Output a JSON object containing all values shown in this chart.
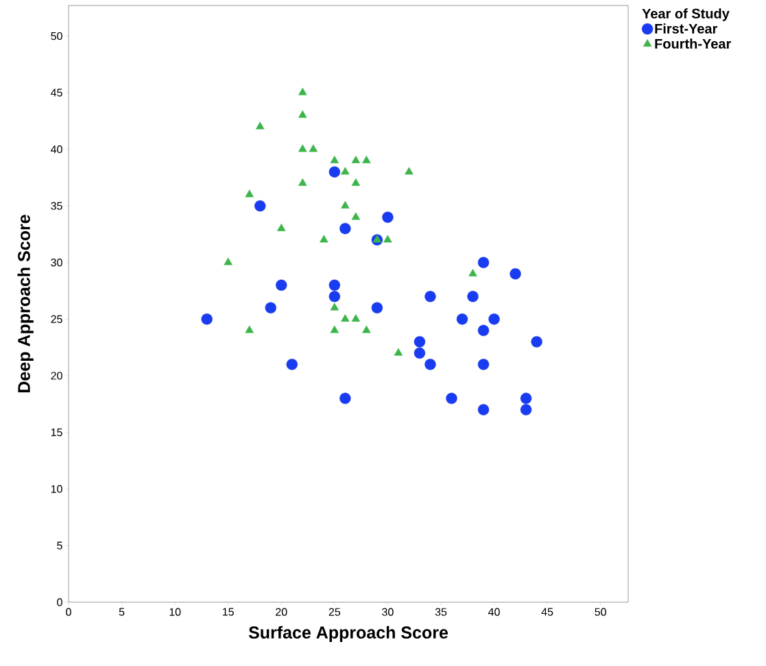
{
  "chart_data": {
    "type": "scatter",
    "xlabel": "Surface Approach Score",
    "ylabel": "Deep Approach Score",
    "legend_title": "Year of Study",
    "legend": "top right",
    "xlim": [
      0,
      52.6
    ],
    "ylim": [
      0,
      52.7
    ],
    "xticks": [
      0,
      5,
      10,
      15,
      20,
      25,
      30,
      35,
      40,
      45,
      50
    ],
    "yticks": [
      0,
      5,
      10,
      15,
      20,
      25,
      30,
      35,
      40,
      45,
      50
    ],
    "series": [
      {
        "name": "First-Year",
        "color": "#1a3cf0",
        "marker": "circle",
        "x": [
          13,
          18,
          19,
          20,
          21,
          25,
          25,
          25,
          26,
          26,
          29,
          29,
          30,
          33,
          33,
          34,
          34,
          36,
          37,
          38,
          39,
          39,
          39,
          39,
          40,
          42,
          43,
          43,
          44
        ],
        "values": [
          25,
          35,
          26,
          28,
          21,
          38,
          28,
          27,
          33,
          18,
          32,
          26,
          34,
          23,
          22,
          27,
          21,
          18,
          25,
          27,
          30,
          24,
          21,
          17,
          25,
          29,
          18,
          17,
          23
        ]
      },
      {
        "name": "Fourth-Year",
        "color": "#3db54a",
        "marker": "triangle",
        "x": [
          22,
          22,
          18,
          22,
          23,
          25,
          27,
          28,
          26,
          32,
          22,
          27,
          17,
          26,
          27,
          20,
          24,
          29,
          30,
          15,
          38,
          25,
          26,
          27,
          17,
          25,
          28,
          31
        ],
        "values": [
          45,
          43,
          42,
          40,
          40,
          39,
          39,
          39,
          38,
          38,
          37,
          37,
          36,
          35,
          34,
          33,
          32,
          32,
          32,
          30,
          29,
          26,
          25,
          25,
          24,
          24,
          24,
          22
        ]
      }
    ]
  }
}
